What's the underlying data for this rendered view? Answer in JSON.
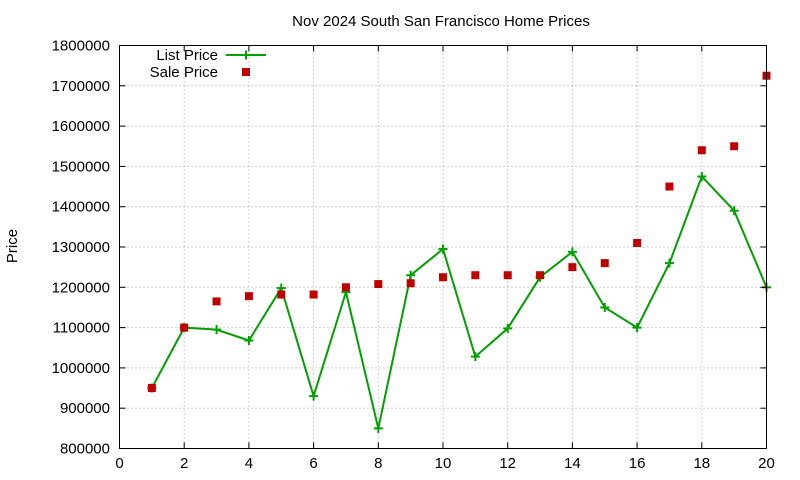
{
  "chart_data": {
    "type": "line",
    "title": "Nov 2024 South San Francisco Home Prices",
    "xlabel": "",
    "ylabel": "Price",
    "xlim": [
      0,
      20
    ],
    "ylim": [
      800000,
      1800000
    ],
    "xticks": [
      0,
      2,
      4,
      6,
      8,
      10,
      12,
      14,
      16,
      18,
      20
    ],
    "yticks": [
      800000,
      900000,
      1000000,
      1100000,
      1200000,
      1300000,
      1400000,
      1500000,
      1600000,
      1700000,
      1800000
    ],
    "grid": true,
    "legend_position": "top-left",
    "x": [
      1,
      2,
      3,
      4,
      5,
      6,
      7,
      8,
      9,
      10,
      11,
      12,
      13,
      14,
      15,
      16,
      17,
      18,
      19,
      20
    ],
    "series": [
      {
        "name": "List Price",
        "style": "line-cross",
        "color": "#00a000",
        "values": [
          950000,
          1100000,
          1095000,
          1068000,
          1198000,
          930000,
          1188000,
          850000,
          1230000,
          1295000,
          1028000,
          1098000,
          1225000,
          1288000,
          1150000,
          1100000,
          1260000,
          1475000,
          1390000,
          1200000
        ]
      },
      {
        "name": "Sale Price",
        "style": "square",
        "color": "#c00000",
        "values": [
          950000,
          1100000,
          1165000,
          1178000,
          1182000,
          1182000,
          1200000,
          1208000,
          1210000,
          1225000,
          1230000,
          1230000,
          1230000,
          1250000,
          1260000,
          1310000,
          1450000,
          1540000,
          1550000,
          1725000
        ]
      }
    ]
  }
}
